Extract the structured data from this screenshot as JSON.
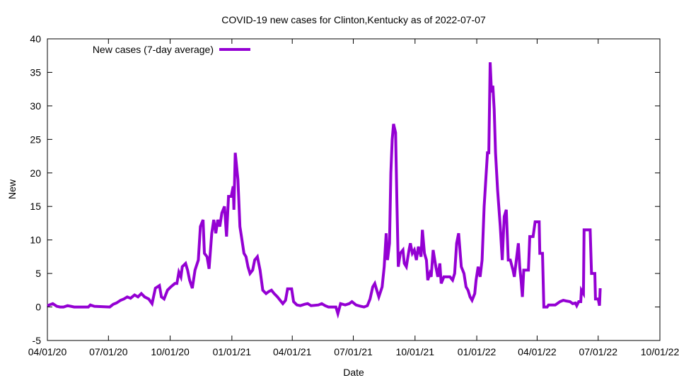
{
  "chart_data": {
    "type": "line",
    "title": "COVID-19 new cases for Clinton,Kentucky as of 2022-07-07",
    "xlabel": "Date",
    "ylabel": "New",
    "x_unit": "days since 2020-04-01",
    "xlim": [
      0,
      913
    ],
    "ylim": [
      -5,
      40
    ],
    "yticks": [
      -5,
      0,
      5,
      10,
      15,
      20,
      25,
      30,
      35,
      40
    ],
    "xticks": [
      {
        "day": 0,
        "label": "04/01/20"
      },
      {
        "day": 91,
        "label": "07/01/20"
      },
      {
        "day": 183,
        "label": "10/01/20"
      },
      {
        "day": 275,
        "label": "01/01/21"
      },
      {
        "day": 365,
        "label": "04/01/21"
      },
      {
        "day": 456,
        "label": "07/01/21"
      },
      {
        "day": 548,
        "label": "10/01/21"
      },
      {
        "day": 640,
        "label": "01/01/22"
      },
      {
        "day": 730,
        "label": "04/01/22"
      },
      {
        "day": 821,
        "label": "07/01/22"
      },
      {
        "day": 913,
        "label": "10/01/22"
      }
    ],
    "grid": false,
    "legend_position": "top-left",
    "series": [
      {
        "name": "New cases (7-day average)",
        "color": "#9400d3",
        "points": [
          [
            0,
            0.2
          ],
          [
            8,
            0.5
          ],
          [
            14,
            0.1
          ],
          [
            19,
            0
          ],
          [
            24,
            0
          ],
          [
            30,
            0.2
          ],
          [
            35,
            0.1
          ],
          [
            40,
            0
          ],
          [
            61,
            0
          ],
          [
            64,
            0.3
          ],
          [
            70,
            0.1
          ],
          [
            93,
            0
          ],
          [
            98,
            0.4
          ],
          [
            103,
            0.6
          ],
          [
            109,
            1.0
          ],
          [
            114,
            1.2
          ],
          [
            119,
            1.5
          ],
          [
            124,
            1.3
          ],
          [
            130,
            1.8
          ],
          [
            135,
            1.5
          ],
          [
            140,
            2.0
          ],
          [
            145,
            1.5
          ],
          [
            151,
            1.2
          ],
          [
            156,
            0.5
          ],
          [
            161,
            2.8
          ],
          [
            167,
            3.2
          ],
          [
            170,
            1.5
          ],
          [
            174,
            1.2
          ],
          [
            179,
            2.5
          ],
          [
            184,
            3.0
          ],
          [
            190,
            3.5
          ],
          [
            193,
            3.5
          ],
          [
            196,
            5.2
          ],
          [
            199,
            4.5
          ],
          [
            201,
            6.0
          ],
          [
            206,
            6.5
          ],
          [
            209,
            5.5
          ],
          [
            212,
            4.0
          ],
          [
            216,
            2.8
          ],
          [
            220,
            5.5
          ],
          [
            225,
            7
          ],
          [
            228,
            12
          ],
          [
            232,
            13
          ],
          [
            234,
            8
          ],
          [
            238,
            7.5
          ],
          [
            241,
            5.7
          ],
          [
            245,
            11
          ],
          [
            248,
            13
          ],
          [
            251,
            11
          ],
          [
            254,
            13
          ],
          [
            257,
            12
          ],
          [
            260,
            14
          ],
          [
            264,
            15
          ],
          [
            267,
            10.5
          ],
          [
            270,
            16.5
          ],
          [
            274,
            16.5
          ],
          [
            277,
            18
          ],
          [
            278,
            14.5
          ],
          [
            280,
            23
          ],
          [
            284,
            19
          ],
          [
            287,
            12
          ],
          [
            290,
            10
          ],
          [
            293,
            8
          ],
          [
            296,
            7.5
          ],
          [
            299,
            6
          ],
          [
            302,
            5
          ],
          [
            306,
            5.5
          ],
          [
            309,
            7
          ],
          [
            313,
            7.5
          ],
          [
            317,
            5.5
          ],
          [
            321,
            2.5
          ],
          [
            326,
            2
          ],
          [
            330,
            2.3
          ],
          [
            334,
            2.5
          ],
          [
            338,
            2
          ],
          [
            343,
            1.5
          ],
          [
            347,
            1
          ],
          [
            351,
            0.5
          ],
          [
            355,
            1
          ],
          [
            358,
            2.7
          ],
          [
            364,
            2.7
          ],
          [
            367,
            0.8
          ],
          [
            372,
            0.3
          ],
          [
            377,
            0.2
          ],
          [
            383,
            0.4
          ],
          [
            388,
            0.5
          ],
          [
            393,
            0.2
          ],
          [
            404,
            0.3
          ],
          [
            409,
            0.5
          ],
          [
            414,
            0.2
          ],
          [
            419,
            0
          ],
          [
            430,
            0
          ],
          [
            433,
            -1
          ],
          [
            437,
            0.5
          ],
          [
            444,
            0.3
          ],
          [
            450,
            0.5
          ],
          [
            454,
            0.8
          ],
          [
            460,
            0.3
          ],
          [
            467,
            0.1
          ],
          [
            472,
            0
          ],
          [
            477,
            0.2
          ],
          [
            481,
            1.2
          ],
          [
            485,
            3
          ],
          [
            488,
            3.5
          ],
          [
            491,
            2.5
          ],
          [
            494,
            1.5
          ],
          [
            499,
            3
          ],
          [
            502,
            6
          ],
          [
            505,
            11
          ],
          [
            507,
            7
          ],
          [
            510,
            9.5
          ],
          [
            512,
            20
          ],
          [
            514,
            25
          ],
          [
            516,
            27.3
          ],
          [
            519,
            26
          ],
          [
            521,
            15.5
          ],
          [
            523,
            6
          ],
          [
            526,
            8
          ],
          [
            530,
            8.5
          ],
          [
            532,
            6.5
          ],
          [
            535,
            6
          ],
          [
            539,
            8.5
          ],
          [
            541,
            9.5
          ],
          [
            544,
            8
          ],
          [
            547,
            8.5
          ],
          [
            550,
            7
          ],
          [
            553,
            9
          ],
          [
            557,
            7.5
          ],
          [
            559,
            11.5
          ],
          [
            562,
            8
          ],
          [
            565,
            7
          ],
          [
            567,
            4
          ],
          [
            570,
            5
          ],
          [
            572,
            4.5
          ],
          [
            575,
            8.5
          ],
          [
            579,
            6
          ],
          [
            582,
            4.5
          ],
          [
            585,
            6.5
          ],
          [
            587,
            3.5
          ],
          [
            591,
            4.5
          ],
          [
            596,
            4.5
          ],
          [
            600,
            4.5
          ],
          [
            604,
            4.0
          ],
          [
            607,
            5
          ],
          [
            610,
            9.5
          ],
          [
            613,
            11
          ],
          [
            617,
            6
          ],
          [
            621,
            5
          ],
          [
            624,
            3
          ],
          [
            627,
            2.5
          ],
          [
            630,
            1.5
          ],
          [
            633,
            1
          ],
          [
            637,
            2
          ],
          [
            639,
            4
          ],
          [
            642,
            6
          ],
          [
            645,
            4.5
          ],
          [
            648,
            7
          ],
          [
            651,
            15
          ],
          [
            656,
            23
          ],
          [
            658,
            23
          ],
          [
            660,
            36.5
          ],
          [
            662,
            32
          ],
          [
            664,
            33
          ],
          [
            666,
            29.5
          ],
          [
            668,
            23
          ],
          [
            671,
            17.5
          ],
          [
            675,
            12
          ],
          [
            678,
            7
          ],
          [
            681,
            13.5
          ],
          [
            684,
            14.5
          ],
          [
            687,
            7
          ],
          [
            690,
            7
          ],
          [
            694,
            5.5
          ],
          [
            696,
            4.5
          ],
          [
            699,
            7
          ],
          [
            702,
            9.5
          ],
          [
            704,
            6
          ],
          [
            706,
            4
          ],
          [
            708,
            1.5
          ],
          [
            710,
            5.5
          ],
          [
            717,
            5.5
          ],
          [
            719,
            10.5
          ],
          [
            724,
            10.5
          ],
          [
            727,
            12.7
          ],
          [
            733,
            12.7
          ],
          [
            734,
            8
          ],
          [
            738,
            8
          ],
          [
            740,
            0
          ],
          [
            745,
            0
          ],
          [
            747,
            0.3
          ],
          [
            757,
            0.3
          ],
          [
            764,
            0.8
          ],
          [
            769,
            1.0
          ],
          [
            773,
            0.9
          ],
          [
            779,
            0.8
          ],
          [
            783,
            0.5
          ],
          [
            787,
            0.6
          ],
          [
            789,
            0.2
          ],
          [
            792,
            0.8
          ],
          [
            795,
            0.8
          ],
          [
            796,
            2.5
          ],
          [
            799,
            2
          ],
          [
            800,
            11.5
          ],
          [
            809,
            11.5
          ],
          [
            811,
            5
          ],
          [
            816,
            5
          ],
          [
            817,
            1.2
          ],
          [
            821,
            1.2
          ],
          [
            823,
            0.2
          ],
          [
            824,
            2.8
          ]
        ]
      }
    ]
  }
}
